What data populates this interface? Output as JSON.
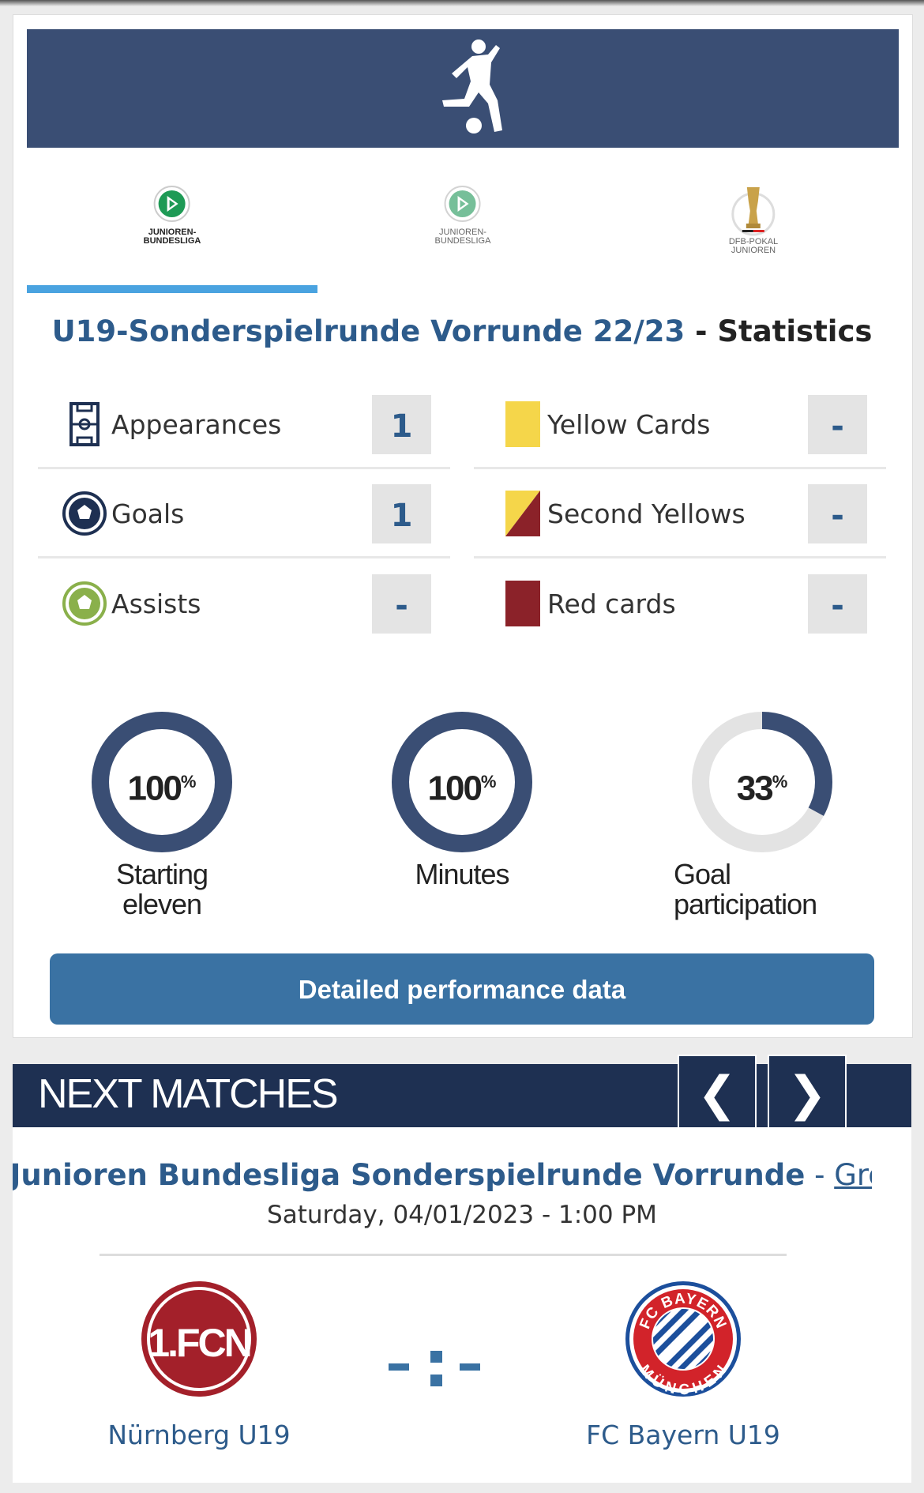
{
  "tabs": [
    {
      "label1": "JUNIOREN-",
      "label2": "BUNDESLIGA",
      "active": true
    },
    {
      "label1": "JUNIOREN-",
      "label2": "BUNDESLIGA",
      "active": false
    },
    {
      "label1": "DFB-POKAL",
      "label2": "JUNIOREN",
      "active": false
    }
  ],
  "stats_title": {
    "competition": "U19-Sonderspielrunde Vorrunde 22/23",
    "separator": " - ",
    "suffix": "Statistics"
  },
  "stats_left": [
    {
      "label": "Appearances",
      "value": "1",
      "icon": "pitch-icon"
    },
    {
      "label": "Goals",
      "value": "1",
      "icon": "soccer-ball-icon"
    },
    {
      "label": "Assists",
      "value": "-",
      "icon": "assist-ball-icon"
    }
  ],
  "stats_right": [
    {
      "label": "Yellow Cards",
      "value": "-",
      "icon": "yellow-card-icon"
    },
    {
      "label": "Second Yellows",
      "value": "-",
      "icon": "second-yellow-card-icon"
    },
    {
      "label": "Red cards",
      "value": "-",
      "icon": "red-card-icon"
    }
  ],
  "donuts": [
    {
      "value": "100",
      "unit": "%",
      "fraction": 1.0,
      "caption": "Starting eleven"
    },
    {
      "value": "100",
      "unit": "%",
      "fraction": 1.0,
      "caption": "Minutes"
    },
    {
      "value": "33",
      "unit": "%",
      "fraction": 0.33,
      "caption1": "Goal",
      "caption2": "participation"
    }
  ],
  "detail_button": "Detailed performance data",
  "next_matches": {
    "title": "NEXT MATCHES",
    "prev": "❮",
    "next": "❯",
    "competition": "A-Junioren Bundesliga Sonderspielrunde Vorrunde",
    "dash": " - ",
    "group": "Group E",
    "datetime": "Saturday, 04/01/2023 - 1:00 PM",
    "score": "- : -",
    "home": {
      "name": "Nürnberg U19",
      "logo_text": "1.FCN"
    },
    "away": {
      "name": "FC Bayern U19",
      "logo_top": "FC BAYERN",
      "logo_bottom": "MÜNCHEN"
    }
  },
  "colors": {
    "navy": "#3a4e74",
    "dark_navy": "#1e3052",
    "blue": "#2d5b8b",
    "button": "#3a72a3",
    "yellow": "#f5d64a",
    "red": "#8b2229"
  }
}
